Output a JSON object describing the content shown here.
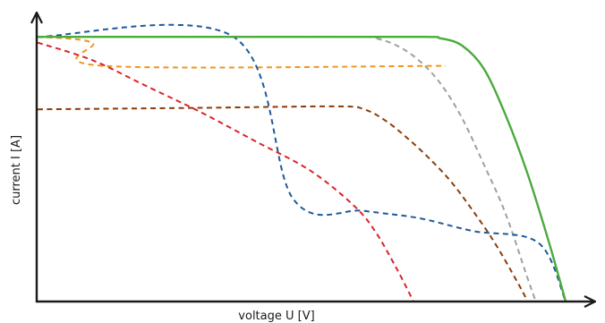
{
  "chart_data": {
    "type": "line",
    "title": "",
    "xlabel": "voltage U [V]",
    "ylabel": "current I [A]",
    "xlim": [
      0,
      100
    ],
    "ylim": [
      0,
      100
    ],
    "grid": false,
    "legend": "none",
    "series": [
      {
        "color": "#4aaa3c",
        "style": "solid",
        "x": [
          0,
          40,
          70,
          74,
          78,
          82,
          86,
          90,
          94,
          97
        ],
        "y": [
          91,
          91,
          91,
          90.5,
          88,
          80,
          64,
          44,
          20,
          0
        ]
      },
      {
        "color": "#a0a0a0",
        "style": "dashed",
        "x": [
          0,
          58,
          62,
          66,
          70,
          74,
          78,
          82,
          86,
          90,
          91.5
        ],
        "y": [
          91,
          91,
          90.5,
          88,
          83,
          75,
          63,
          47,
          30,
          8,
          0
        ]
      },
      {
        "color": "#f0961e",
        "style": "dashed",
        "x": [
          0,
          10,
          12,
          75
        ],
        "y": [
          91,
          89,
          81,
          81
        ]
      },
      {
        "color": "#8b3c0a",
        "style": "dashed",
        "x": [
          0,
          30,
          55,
          60,
          64,
          68,
          72,
          76,
          80,
          84,
          88,
          90
        ],
        "y": [
          66,
          66.5,
          67,
          66,
          62,
          56,
          49,
          41,
          31,
          20,
          7,
          0
        ]
      },
      {
        "color": "#1e5a9b",
        "style": "dashed",
        "x": [
          0,
          36,
          47,
          60,
          70,
          80,
          92,
          97
        ],
        "y": [
          91,
          91,
          35,
          31,
          28.5,
          24,
          20,
          0
        ]
      },
      {
        "color": "#dc2328",
        "style": "dashed",
        "x": [
          0,
          10,
          20,
          30,
          40,
          50,
          58,
          62,
          66,
          69
        ],
        "y": [
          89,
          83,
          74,
          65,
          55,
          45,
          33,
          24,
          11,
          0
        ]
      }
    ]
  }
}
